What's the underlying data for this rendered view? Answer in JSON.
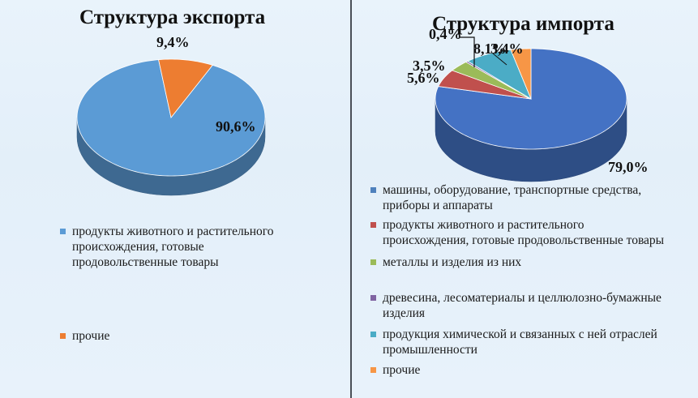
{
  "chart_data": [
    {
      "type": "pie",
      "title": "Структура экспорта",
      "categories": [
        "продукты животного и растительного происхождения, готовые продовольственные товары",
        "прочие"
      ],
      "values": [
        90.6,
        9.4
      ],
      "data_labels": [
        "90,6%",
        "9,4%"
      ],
      "colors": [
        "#5b9bd5",
        "#ed7d31"
      ],
      "legend": {
        "placement": "bottom",
        "items": [
          {
            "label_lines": [
              "продукты животного и растительного",
              "происхождения, готовые",
              "продовольственные товары"
            ],
            "color": "#5b9bd5"
          },
          {
            "label_lines": [
              "прочие"
            ],
            "color": "#ed7d31"
          }
        ]
      }
    },
    {
      "type": "pie",
      "title": "Структура импорта",
      "categories": [
        "машины, оборудование, транспортные средства, приборы и аппараты",
        "продукты животного и растительного происхождения, готовые продовольственные товары",
        "металлы и изделия из них",
        "древесина, лесоматериалы и целлюлозно-бумажные изделия",
        "продукция химической и связанных с ней отраслей промышленности",
        "прочие"
      ],
      "values": [
        79.0,
        5.6,
        3.5,
        0.4,
        8.1,
        3.4
      ],
      "data_labels": [
        "79,0%",
        "5,6%",
        "3,5%",
        "0,4%",
        "8,1%",
        "3,4%"
      ],
      "colors": [
        "#4472c4",
        "#c0504d",
        "#9bbb59",
        "#8064a2",
        "#4bacc6",
        "#f79646"
      ],
      "legend": {
        "placement": "bottom",
        "items": [
          {
            "label_lines": [
              "машины, оборудование, транспортные средства,",
              "приборы и аппараты"
            ],
            "color": "#4f81bd"
          },
          {
            "label_lines": [
              "продукты животного и растительного",
              "происхождения, готовые продовольственные товары"
            ],
            "color": "#c0504d"
          },
          {
            "label_lines": [
              "металлы и изделия из них"
            ],
            "color": "#9bbb59"
          },
          {
            "label_lines": [
              "древесина, лесоматериалы и целлюлозно-бумажные",
              "изделия"
            ],
            "color": "#8064a2"
          },
          {
            "label_lines": [
              "продукция химической и связанных с ней отраслей",
              "промышленности"
            ],
            "color": "#4bacc6"
          },
          {
            "label_lines": [
              "прочие"
            ],
            "color": "#f79646"
          }
        ]
      }
    }
  ]
}
